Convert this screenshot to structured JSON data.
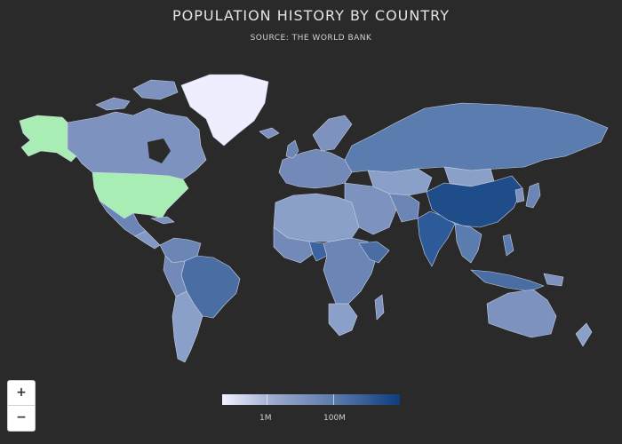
{
  "header": {
    "title": "POPULATION HISTORY BY COUNTRY",
    "subtitle": "SOURCE: THE WORLD BANK"
  },
  "zoom": {
    "in_label": "+",
    "out_label": "−"
  },
  "legend": {
    "labels": [
      "1M",
      "100M"
    ],
    "color_min": "#f2f2ff",
    "color_max": "#0e3d7f"
  },
  "highlight_color": "#a8eeb4",
  "map_colors": {
    "greenland": "#eeeeff",
    "usa": "#a8eeb4",
    "china": "#1e4d8a",
    "india": "#2d5a98",
    "russia": "#5a7cae",
    "default": "#6b85b5"
  }
}
